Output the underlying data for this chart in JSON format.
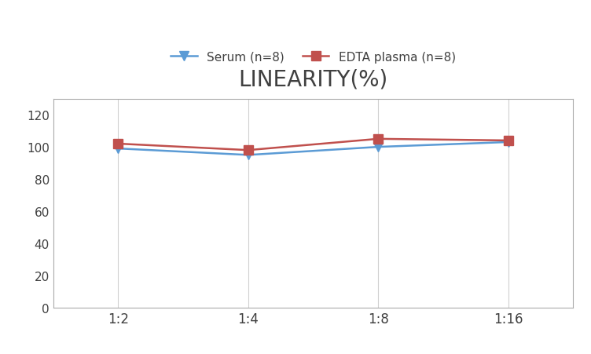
{
  "title": "LINEARITY(%)",
  "title_fontsize": 20,
  "title_fontweight": "normal",
  "title_color": "#404040",
  "x_labels": [
    "1:2",
    "1:4",
    "1:8",
    "1:16"
  ],
  "x_positions": [
    0,
    1,
    2,
    3
  ],
  "serum_label": "Serum (n=8)",
  "serum_values": [
    99,
    95,
    100,
    103
  ],
  "serum_color": "#5b9bd5",
  "edta_label": "EDTA plasma (n=8)",
  "edta_values": [
    102,
    98,
    105,
    104
  ],
  "edta_color": "#c0504d",
  "ylim": [
    0,
    130
  ],
  "yticks": [
    0,
    20,
    40,
    60,
    80,
    100,
    120
  ],
  "background_color": "#ffffff",
  "grid_color": "#d0d0d0",
  "line_width": 1.8,
  "marker_size": 8,
  "spine_color": "#aaaaaa",
  "tick_fontsize": 11,
  "xlabel_fontsize": 12
}
